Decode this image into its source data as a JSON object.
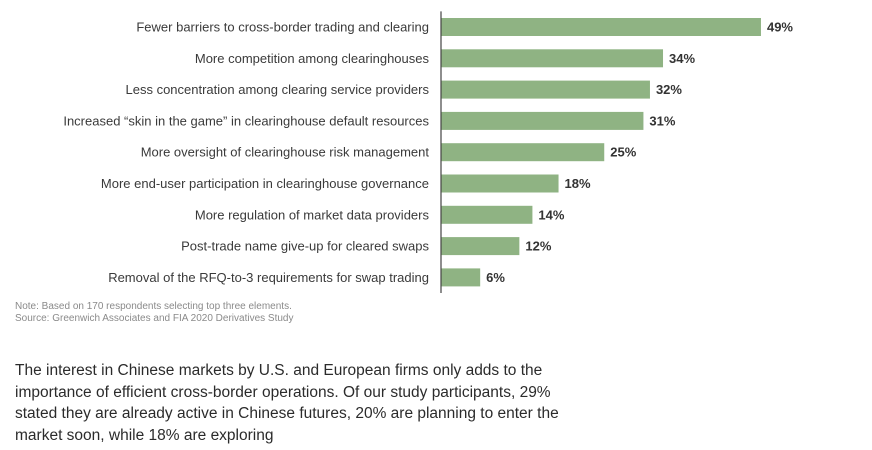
{
  "chart_data": {
    "type": "bar",
    "orientation": "horizontal",
    "categories": [
      "Fewer barriers to cross-border trading and clearing",
      "More competition among clearinghouses",
      "Less concentration among clearing service providers",
      "Increased “skin in the game” in clearinghouse default resources",
      "More oversight of clearinghouse risk management",
      "More end-user participation in clearinghouse governance",
      "More regulation of market data providers",
      "Post-trade name give-up for cleared swaps",
      "Removal of the RFQ-to-3 requirements for swap trading"
    ],
    "values": [
      49,
      34,
      32,
      31,
      25,
      18,
      14,
      12,
      6
    ],
    "value_labels": [
      "49%",
      "34%",
      "32%",
      "31%",
      "25%",
      "18%",
      "14%",
      "12%",
      "6%"
    ],
    "bar_color": "#8fb383",
    "xlim": [
      0,
      50
    ],
    "grid": false,
    "legend": "none"
  },
  "note": {
    "line1": "Note: Based on 170 respondents selecting top three elements.",
    "line2": "Source: Greenwich Associates and FIA 2020 Derivatives Study"
  },
  "body": {
    "paragraph": "The interest in Chinese markets by U.S. and European firms only adds to the importance of efficient cross-border operations. Of our study participants, 29% stated they are already active in Chinese futures, 20% are planning to enter the market soon, while 18% are exploring"
  }
}
